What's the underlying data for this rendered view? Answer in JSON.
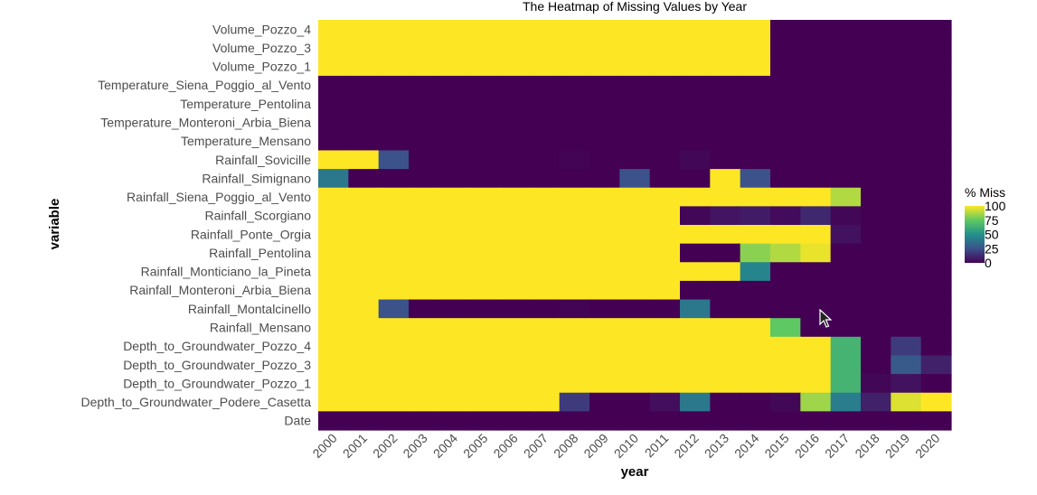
{
  "chart_data": {
    "type": "heatmap",
    "title": "The Heatmap of Missing Values by Year",
    "xlabel": "year",
    "ylabel": "variable",
    "x": [
      "2000",
      "2001",
      "2002",
      "2003",
      "2004",
      "2005",
      "2006",
      "2007",
      "2008",
      "2009",
      "2010",
      "2011",
      "2012",
      "2013",
      "2014",
      "2015",
      "2016",
      "2017",
      "2018",
      "2019",
      "2020"
    ],
    "y": [
      "Volume_Pozzo_4",
      "Volume_Pozzo_3",
      "Volume_Pozzo_1",
      "Temperature_Siena_Poggio_al_Vento",
      "Temperature_Pentolina",
      "Temperature_Monteroni_Arbia_Biena",
      "Temperature_Mensano",
      "Rainfall_Sovicille",
      "Rainfall_Simignano",
      "Rainfall_Siena_Poggio_al_Vento",
      "Rainfall_Scorgiano",
      "Rainfall_Ponte_Orgia",
      "Rainfall_Pentolina",
      "Rainfall_Monticiano_la_Pineta",
      "Rainfall_Monteroni_Arbia_Biena",
      "Rainfall_Montalcinello",
      "Rainfall_Mensano",
      "Depth_to_Groundwater_Pozzo_4",
      "Depth_to_Groundwater_Pozzo_3",
      "Depth_to_Groundwater_Pozzo_1",
      "Depth_to_Groundwater_Podere_Casetta",
      "Date"
    ],
    "values": [
      [
        100,
        100,
        100,
        100,
        100,
        100,
        100,
        100,
        100,
        100,
        100,
        100,
        100,
        100,
        100,
        0,
        0,
        0,
        0,
        0,
        0
      ],
      [
        100,
        100,
        100,
        100,
        100,
        100,
        100,
        100,
        100,
        100,
        100,
        100,
        100,
        100,
        100,
        0,
        0,
        0,
        0,
        0,
        0
      ],
      [
        100,
        100,
        100,
        100,
        100,
        100,
        100,
        100,
        100,
        100,
        100,
        100,
        100,
        100,
        100,
        0,
        0,
        0,
        0,
        0,
        0
      ],
      [
        0,
        0,
        0,
        0,
        0,
        0,
        0,
        0,
        0,
        0,
        0,
        0,
        0,
        0,
        0,
        0,
        0,
        0,
        0,
        0,
        0
      ],
      [
        0,
        0,
        0,
        0,
        0,
        0,
        0,
        0,
        0,
        0,
        0,
        0,
        0,
        0,
        0,
        0,
        0,
        0,
        0,
        0,
        0
      ],
      [
        0,
        0,
        0,
        0,
        0,
        0,
        0,
        0,
        0,
        0,
        0,
        0,
        0,
        0,
        0,
        0,
        0,
        0,
        0,
        0,
        0
      ],
      [
        0,
        0,
        0,
        0,
        0,
        0,
        0,
        0,
        0,
        0,
        0,
        0,
        0,
        0,
        0,
        0,
        0,
        0,
        0,
        0,
        0
      ],
      [
        100,
        100,
        25,
        0,
        0,
        0,
        0,
        0,
        1,
        0,
        0,
        0,
        2,
        0,
        0,
        0,
        0,
        0,
        0,
        0,
        0
      ],
      [
        40,
        0,
        0,
        0,
        0,
        0,
        0,
        0,
        0,
        0,
        25,
        0,
        0,
        100,
        25,
        0,
        0,
        0,
        0,
        0,
        0
      ],
      [
        100,
        100,
        100,
        100,
        100,
        100,
        100,
        100,
        100,
        100,
        100,
        100,
        100,
        100,
        100,
        100,
        100,
        88,
        0,
        0,
        0
      ],
      [
        100,
        100,
        100,
        100,
        100,
        100,
        100,
        100,
        100,
        100,
        100,
        100,
        2,
        6,
        8,
        3,
        12,
        2,
        0,
        0,
        0
      ],
      [
        100,
        100,
        100,
        100,
        100,
        100,
        100,
        100,
        100,
        100,
        100,
        100,
        100,
        100,
        100,
        100,
        100,
        5,
        0,
        0,
        0
      ],
      [
        100,
        100,
        100,
        100,
        100,
        100,
        100,
        100,
        100,
        100,
        100,
        100,
        0,
        0,
        82,
        88,
        97,
        0,
        0,
        0,
        0
      ],
      [
        100,
        100,
        100,
        100,
        100,
        100,
        100,
        100,
        100,
        100,
        100,
        100,
        100,
        100,
        45,
        0,
        0,
        0,
        0,
        0,
        0
      ],
      [
        100,
        100,
        100,
        100,
        100,
        100,
        100,
        100,
        100,
        100,
        100,
        100,
        0,
        0,
        0,
        0,
        0,
        0,
        0,
        0,
        0
      ],
      [
        100,
        100,
        25,
        0,
        0,
        0,
        0,
        0,
        1,
        0,
        0,
        0,
        40,
        0,
        0,
        0,
        0,
        0,
        0,
        0,
        0
      ],
      [
        100,
        100,
        100,
        100,
        100,
        100,
        100,
        100,
        100,
        100,
        100,
        100,
        100,
        100,
        100,
        75,
        0,
        0,
        0,
        0,
        0
      ],
      [
        100,
        100,
        100,
        100,
        100,
        100,
        100,
        100,
        100,
        100,
        100,
        100,
        100,
        100,
        100,
        100,
        100,
        65,
        0,
        18,
        0
      ],
      [
        100,
        100,
        100,
        100,
        100,
        100,
        100,
        100,
        100,
        100,
        100,
        100,
        100,
        100,
        100,
        100,
        100,
        65,
        0,
        28,
        10
      ],
      [
        100,
        100,
        100,
        100,
        100,
        100,
        100,
        100,
        100,
        100,
        100,
        100,
        100,
        100,
        100,
        100,
        100,
        65,
        2,
        5,
        0
      ],
      [
        100,
        100,
        100,
        100,
        100,
        100,
        100,
        100,
        18,
        0,
        0,
        4,
        40,
        0,
        0,
        2,
        85,
        42,
        10,
        95,
        100
      ],
      [
        0,
        0,
        0,
        0,
        0,
        0,
        0,
        0,
        0,
        0,
        0,
        0,
        0,
        0,
        0,
        0,
        0,
        0,
        0,
        0,
        0
      ]
    ],
    "legend": {
      "title": "% Miss",
      "ticks": [
        100,
        75,
        50,
        25,
        0
      ],
      "placement": "right"
    },
    "color_scale": "viridis",
    "colors": {
      "low": "#440154",
      "high": "#fde725"
    },
    "value_range": [
      0,
      100
    ],
    "grid": false
  }
}
